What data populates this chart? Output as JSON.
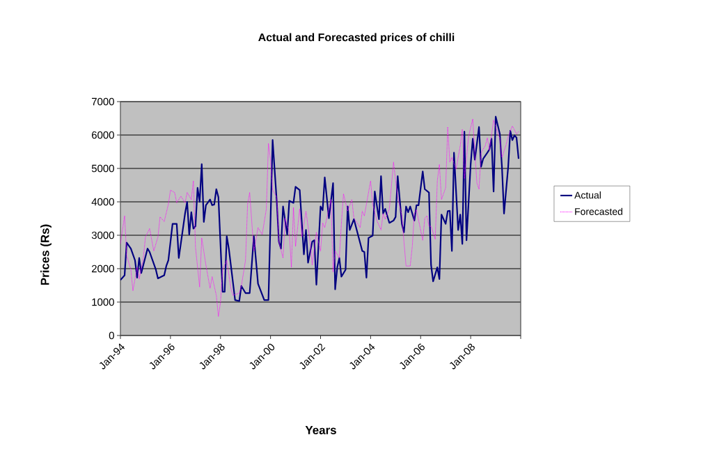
{
  "chart_data": {
    "type": "line",
    "title": "Actual and Forecasted prices of chilli",
    "xlabel": "Years",
    "ylabel": "Prices (Rs)",
    "xlim": [
      "1994-01",
      "2010-01"
    ],
    "ylim": [
      0,
      7000
    ],
    "xticks": [
      {
        "value": "1994-01",
        "label": "Jan-94"
      },
      {
        "value": "1996-01",
        "label": "Jan-96"
      },
      {
        "value": "1998-01",
        "label": "Jan-98"
      },
      {
        "value": "2000-01",
        "label": "Jan-00"
      },
      {
        "value": "2002-01",
        "label": "Jan-02"
      },
      {
        "value": "2004-01",
        "label": "Jan-04"
      },
      {
        "value": "2006-01",
        "label": "Jan-06"
      },
      {
        "value": "2008-01",
        "label": "Jan-08"
      },
      {
        "value": "2010-01",
        "label": null
      }
    ],
    "yticks": [
      0,
      1000,
      2000,
      3000,
      4000,
      5000,
      6000,
      7000
    ],
    "grid": "y",
    "legend": "right",
    "marker": "none",
    "series": [
      {
        "name": "Actual",
        "color": "#000080",
        "line_style": "solid",
        "x": [
          "1994-01",
          "1994-03",
          "1994-04",
          "1994-06",
          "1994-08",
          "1994-09",
          "1994-10",
          "1994-11",
          "1995-02",
          "1995-03",
          "1995-06",
          "1995-07",
          "1995-10",
          "1995-11",
          "1995-12",
          "1996-02",
          "1996-04",
          "1996-05",
          "1996-08",
          "1996-09",
          "1996-10",
          "1996-11",
          "1996-12",
          "1997-01",
          "1997-02",
          "1997-03",
          "1997-04",
          "1997-05",
          "1997-06",
          "1997-08",
          "1997-09",
          "1997-10",
          "1997-11",
          "1997-12",
          "1998-02",
          "1998-03",
          "1998-04",
          "1998-05",
          "1998-08",
          "1998-10",
          "1998-11",
          "1999-01",
          "1999-03",
          "1999-05",
          "1999-07",
          "1999-10",
          "1999-12",
          "2000-02",
          "2000-04",
          "2000-05",
          "2000-06",
          "2000-07",
          "2000-09",
          "2000-10",
          "2000-12",
          "2001-01",
          "2001-03",
          "2001-05",
          "2001-06",
          "2001-07",
          "2001-09",
          "2001-10",
          "2001-11",
          "2002-01",
          "2002-02",
          "2002-03",
          "2002-05",
          "2002-07",
          "2002-08",
          "2002-09",
          "2002-10",
          "2002-11",
          "2003-01",
          "2003-02",
          "2003-03",
          "2003-05",
          "2003-09",
          "2003-10",
          "2003-11",
          "2003-12",
          "2004-02",
          "2004-03",
          "2004-05",
          "2004-06",
          "2004-07",
          "2004-08",
          "2004-10",
          "2004-12",
          "2005-01",
          "2005-02",
          "2005-04",
          "2005-05",
          "2005-06",
          "2005-07",
          "2005-08",
          "2005-10",
          "2005-11",
          "2005-12",
          "2006-02",
          "2006-03",
          "2006-05",
          "2006-06",
          "2006-07",
          "2006-09",
          "2006-10",
          "2006-11",
          "2007-01",
          "2007-02",
          "2007-03",
          "2007-04",
          "2007-05",
          "2007-07",
          "2007-08",
          "2007-09",
          "2007-10",
          "2007-11",
          "2008-01",
          "2008-02",
          "2008-03",
          "2008-05",
          "2008-06",
          "2008-07",
          "2008-09",
          "2008-10",
          "2008-11",
          "2008-12",
          "2009-01",
          "2009-03",
          "2009-04",
          "2009-05",
          "2009-07",
          "2009-08",
          "2009-09",
          "2009-10",
          "2009-11",
          "2009-12"
        ],
        "values": [
          1660,
          1800,
          2780,
          2600,
          2250,
          1730,
          2320,
          1870,
          2600,
          2500,
          1970,
          1710,
          1800,
          2080,
          2250,
          3340,
          3340,
          2320,
          3650,
          4000,
          3020,
          3690,
          3200,
          3270,
          4420,
          4000,
          5130,
          3400,
          3900,
          4070,
          3900,
          3920,
          4380,
          4140,
          1310,
          1310,
          2970,
          2600,
          1060,
          1030,
          1480,
          1270,
          1270,
          2970,
          1550,
          1060,
          1060,
          5850,
          4000,
          2810,
          2600,
          3860,
          3020,
          4030,
          3970,
          4450,
          4350,
          2430,
          3160,
          2180,
          2810,
          2850,
          1520,
          3860,
          3750,
          4730,
          3510,
          4560,
          1380,
          2040,
          2320,
          1760,
          1970,
          3860,
          3160,
          3480,
          2530,
          2500,
          1730,
          2920,
          2990,
          4310,
          3480,
          4770,
          3650,
          3790,
          3370,
          3440,
          3550,
          4770,
          3340,
          3090,
          3860,
          3690,
          3860,
          3440,
          3900,
          3900,
          4910,
          4380,
          4280,
          2110,
          1620,
          2040,
          1690,
          3620,
          3340,
          3720,
          3730,
          2530,
          5470,
          3160,
          3620,
          2740,
          6100,
          2850,
          5120,
          5890,
          5260,
          6240,
          5050,
          5290,
          5470,
          5570,
          5890,
          4310,
          6550,
          6030,
          5050,
          3650,
          5050,
          6130,
          5850,
          5990,
          5920,
          5290
        ]
      },
      {
        "name": "Forecasted",
        "color": "#ff00ff",
        "line_style": "dotted",
        "x": [
          "1994-01",
          "1994-03",
          "1994-04",
          "1994-06",
          "1994-07",
          "1994-09",
          "1994-10",
          "1994-12",
          "1995-01",
          "1995-03",
          "1995-05",
          "1995-07",
          "1995-08",
          "1995-10",
          "1995-12",
          "1996-01",
          "1996-03",
          "1996-04",
          "1996-06",
          "1996-08",
          "1996-09",
          "1996-11",
          "1996-12",
          "1997-01",
          "1997-03",
          "1997-04",
          "1997-06",
          "1997-08",
          "1997-09",
          "1997-11",
          "1997-12",
          "1998-01",
          "1998-02",
          "1998-04",
          "1998-06",
          "1998-07",
          "1998-10",
          "1998-11",
          "1999-01",
          "1999-02",
          "1999-03",
          "1999-05",
          "1999-07",
          "1999-09",
          "1999-11",
          "1999-12",
          "2000-01",
          "2000-02",
          "2000-04",
          "2000-05",
          "2000-07",
          "2000-08",
          "2000-10",
          "2000-11",
          "2000-12",
          "2001-01",
          "2001-03",
          "2001-04",
          "2001-06",
          "2001-08",
          "2001-09",
          "2001-11",
          "2002-01",
          "2002-02",
          "2002-03",
          "2002-06",
          "2002-07",
          "2002-08",
          "2002-10",
          "2002-11",
          "2002-12",
          "2003-02",
          "2003-04",
          "2003-05",
          "2003-08",
          "2003-09",
          "2003-10",
          "2004-01",
          "2004-02",
          "2004-04",
          "2004-06",
          "2004-07",
          "2004-08",
          "2004-10",
          "2004-12",
          "2005-01",
          "2005-02",
          "2005-04",
          "2005-05",
          "2005-06",
          "2005-08",
          "2005-09",
          "2005-10",
          "2005-11",
          "2006-02",
          "2006-03",
          "2006-04",
          "2006-05",
          "2006-06",
          "2006-08",
          "2006-09",
          "2006-10",
          "2006-11",
          "2007-01",
          "2007-02",
          "2007-03",
          "2007-04",
          "2007-06",
          "2007-08",
          "2007-09",
          "2007-10",
          "2007-12",
          "2008-02",
          "2008-03",
          "2008-04",
          "2008-05",
          "2008-06",
          "2008-08",
          "2008-09",
          "2008-10",
          "2008-12",
          "2009-01",
          "2009-03",
          "2009-04",
          "2009-06",
          "2009-07",
          "2009-09",
          "2009-11",
          "2009-12"
        ],
        "values": [
          2740,
          3580,
          2390,
          1970,
          1340,
          2040,
          1690,
          2320,
          2950,
          3200,
          2530,
          2950,
          3550,
          3410,
          3930,
          4350,
          4280,
          3970,
          4170,
          3970,
          4280,
          4070,
          4630,
          2640,
          1450,
          2920,
          2110,
          1410,
          1760,
          1200,
          570,
          990,
          1970,
          2250,
          1410,
          1200,
          1270,
          1480,
          2250,
          3930,
          4280,
          2530,
          3230,
          3020,
          3790,
          5750,
          5260,
          4350,
          4140,
          2810,
          2320,
          3510,
          3090,
          2040,
          3830,
          2670,
          3790,
          2950,
          3720,
          2810,
          2110,
          3090,
          2530,
          3370,
          3230,
          4070,
          1900,
          2530,
          2320,
          3370,
          4240,
          3720,
          4070,
          3510,
          3230,
          3720,
          3580,
          4630,
          3930,
          3440,
          3160,
          3650,
          3480,
          3790,
          5190,
          4630,
          4140,
          3580,
          2810,
          2080,
          2080,
          2670,
          3650,
          3760,
          2850,
          3510,
          3580,
          3270,
          3270,
          2880,
          4630,
          5120,
          4070,
          4420,
          6240,
          5190,
          5330,
          4980,
          5680,
          6170,
          4700,
          5960,
          6480,
          5470,
          4560,
          4380,
          5470,
          5680,
          5920,
          5540,
          6450,
          6240,
          5890,
          5330,
          5710,
          5960,
          6270,
          6030,
          6100
        ]
      }
    ]
  }
}
